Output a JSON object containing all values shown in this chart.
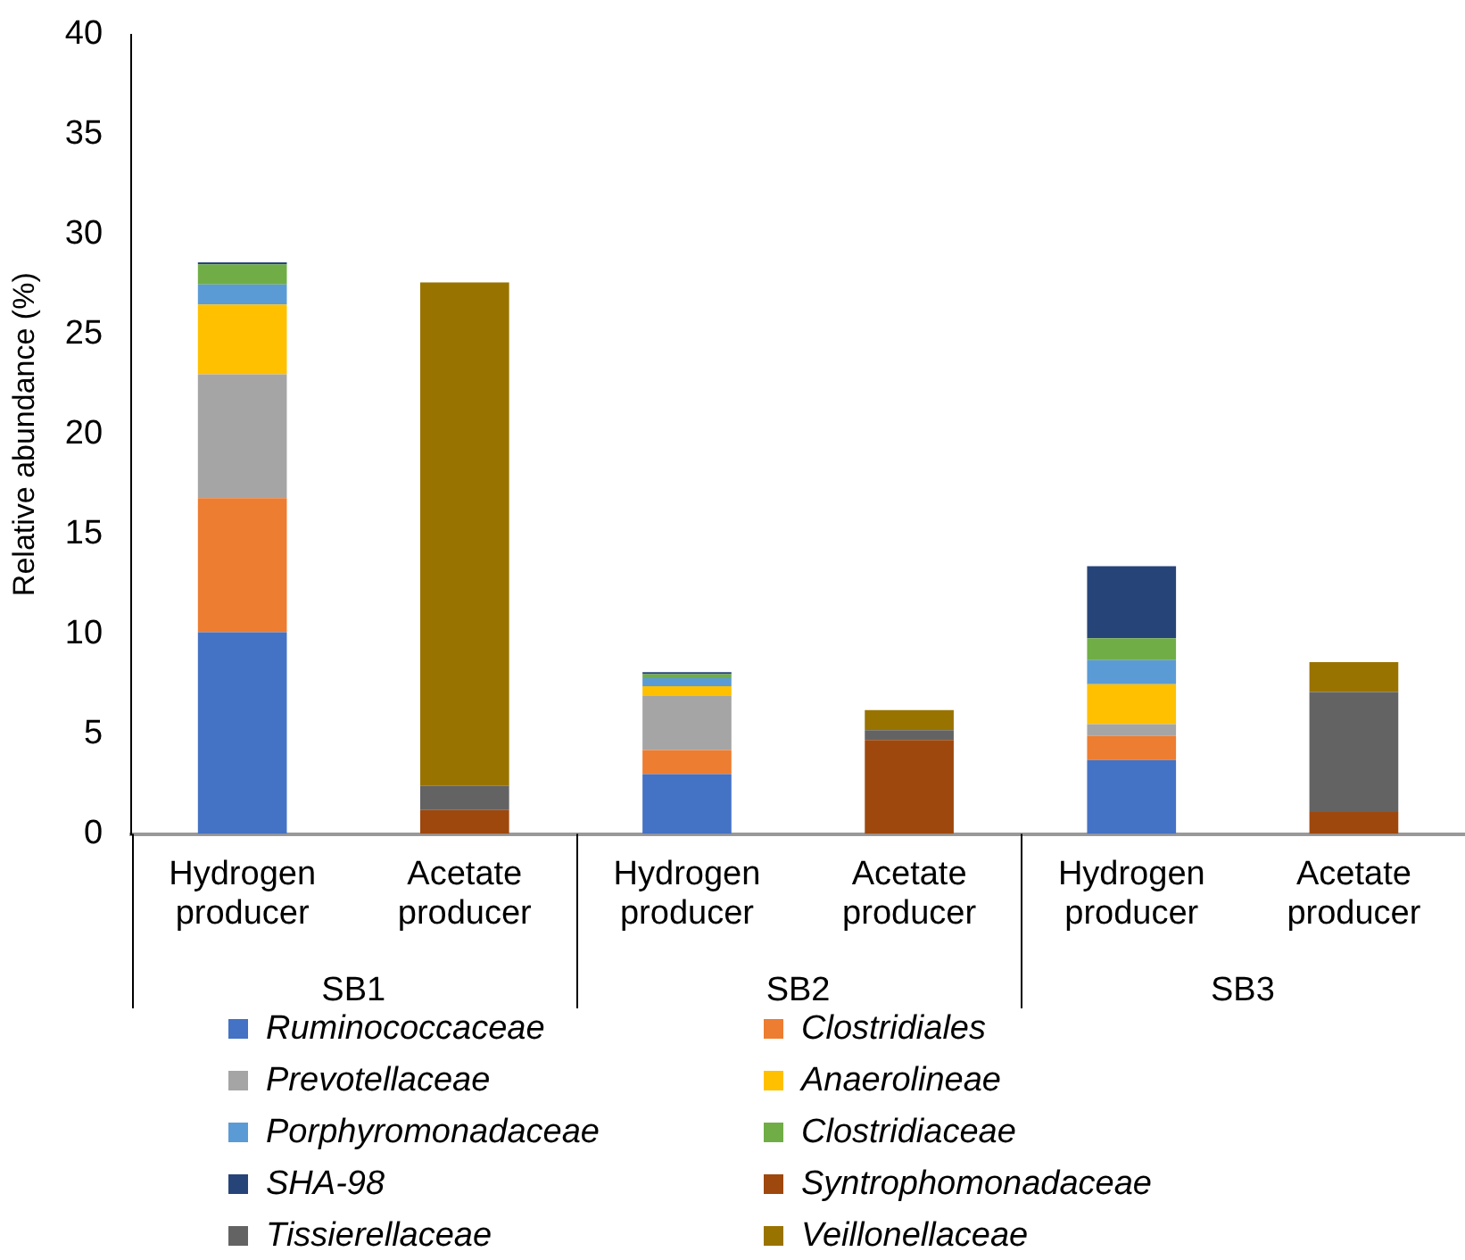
{
  "chart_data": {
    "type": "bar",
    "stacked": true,
    "ylabel": "Relative abundance (%)",
    "categories": [
      "Hydrogen producer",
      "Acetate producer",
      "Hydrogen producer",
      "Acetate producer",
      "Hydrogen producer",
      "Acetate producer"
    ],
    "annotations": [
      "SB1",
      "SB2",
      "SB3"
    ],
    "series": [
      {
        "name": "Ruminococcaceae",
        "color": "#4472c4",
        "values": [
          10.1,
          null,
          3.0,
          null,
          3.7,
          null
        ]
      },
      {
        "name": "Clostridiales",
        "color": "#ed7d31",
        "values": [
          6.7,
          null,
          1.2,
          null,
          1.2,
          null
        ]
      },
      {
        "name": "Prevotellaceae",
        "color": "#a5a5a5",
        "values": [
          6.2,
          null,
          2.7,
          null,
          0.6,
          null
        ]
      },
      {
        "name": "Anaerolineae",
        "color": "#ffc000",
        "values": [
          3.5,
          null,
          0.5,
          null,
          2.0,
          null
        ]
      },
      {
        "name": "Porphyromonadaceae",
        "color": "#5b9bd5",
        "values": [
          1.0,
          null,
          0.4,
          null,
          1.2,
          null
        ]
      },
      {
        "name": "Clostridiaceae",
        "color": "#70ad47",
        "values": [
          1.0,
          null,
          0.2,
          null,
          1.1,
          null
        ]
      },
      {
        "name": "SHA-98",
        "color": "#264478",
        "values": [
          0.1,
          null,
          0.1,
          null,
          3.6,
          null
        ]
      },
      {
        "name": "Syntrophomonadaceae",
        "color": "#9e480e",
        "values": [
          null,
          1.2,
          null,
          4.7,
          null,
          1.1
        ]
      },
      {
        "name": "Tissierellaceae",
        "color": "#636363",
        "values": [
          null,
          1.2,
          null,
          0.5,
          null,
          6.0
        ]
      },
      {
        "name": "Veillonellaceae",
        "color": "#997300",
        "values": [
          null,
          25.2,
          null,
          1.0,
          null,
          1.5
        ]
      }
    ],
    "ylim": [
      0,
      40
    ],
    "yticks": [
      0,
      5,
      10,
      15,
      20,
      25,
      30,
      35,
      40
    ],
    "grid": false,
    "legend": "bottom"
  }
}
